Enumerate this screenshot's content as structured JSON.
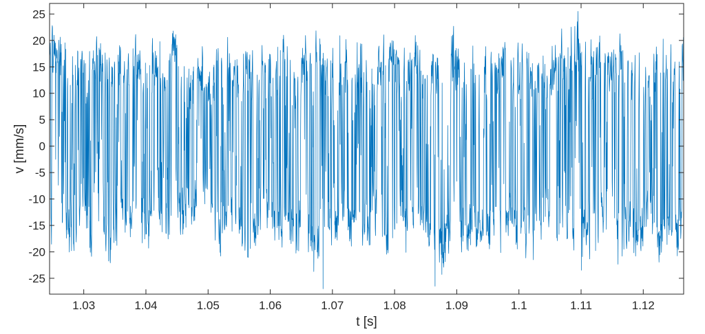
{
  "chart_data": {
    "type": "line",
    "title": "",
    "xlabel": "t [s]",
    "ylabel": "v [mm/s]",
    "xlim": [
      1.0245,
      1.1265
    ],
    "ylim": [
      -28,
      27
    ],
    "x_ticks": [
      1.03,
      1.04,
      1.05,
      1.06,
      1.07,
      1.08,
      1.09,
      1.1,
      1.11,
      1.12
    ],
    "x_tick_labels": [
      "1.03",
      "1.04",
      "1.05",
      "1.06",
      "1.07",
      "1.08",
      "1.09",
      "1.1",
      "1.11",
      "1.12"
    ],
    "y_ticks": [
      25,
      20,
      15,
      10,
      5,
      0,
      -5,
      -10,
      -15,
      -20,
      -25
    ],
    "y_tick_labels": [
      "25",
      "20",
      "15",
      "10",
      "5",
      "0",
      "-5",
      "-10",
      "-15",
      "-20",
      "-25"
    ],
    "grid": false,
    "box": true,
    "colors": {
      "series": "#0072BD",
      "axes": "#262626",
      "background": "#ffffff"
    },
    "series": [
      {
        "x": [
          1.0245,
          1.026,
          1.028,
          1.0295,
          1.031,
          1.0325,
          1.034,
          1.0355,
          1.037,
          1.0385,
          1.04,
          1.0415,
          1.043,
          1.0445,
          1.046,
          1.0475,
          1.049,
          1.0505,
          1.052,
          1.0535,
          1.055,
          1.0565,
          1.058,
          1.0595,
          1.061,
          1.0625,
          1.064,
          1.0655,
          1.067,
          1.0685,
          1.07,
          1.0715,
          1.073,
          1.0745,
          1.076,
          1.0775,
          1.079,
          1.0805,
          1.082,
          1.0835,
          1.085,
          1.0865,
          1.088,
          1.0895,
          1.091,
          1.0925,
          1.094,
          1.0955,
          1.097,
          1.0985,
          1.1,
          1.1015,
          1.103,
          1.1045,
          1.106,
          1.1075,
          1.109,
          1.1105,
          1.112,
          1.1135,
          1.115,
          1.1165,
          1.118,
          1.1195,
          1.121,
          1.1225,
          1.124,
          1.1255,
          1.1265
        ],
        "y": [
          16,
          18,
          -18,
          14,
          -20,
          16,
          -22,
          14,
          -18,
          12,
          -16,
          10,
          -14,
          18,
          -15,
          -12,
          15,
          9,
          -17,
          15,
          -12,
          18,
          -14,
          12,
          -15,
          10,
          -18,
          16,
          -20,
          14,
          -22,
          18,
          -16,
          12,
          -10,
          16,
          -14,
          12,
          -18,
          10,
          -16,
          18,
          -22,
          12,
          -8,
          -10,
          14,
          -12,
          16,
          -14,
          12,
          -16,
          14,
          -12,
          18,
          -15,
          22,
          -18,
          16,
          -12,
          14,
          -16,
          12,
          -14,
          10,
          -18,
          14,
          -16,
          12
        ],
        "band_upper": [
          22,
          23,
          18,
          21,
          20,
          22,
          19,
          20,
          19,
          21,
          17,
          20,
          18,
          22,
          20,
          16,
          21,
          14,
          22,
          19,
          18,
          21,
          17,
          19,
          20,
          22,
          16,
          21,
          22,
          20,
          18,
          21,
          19,
          20,
          17,
          21,
          22,
          20,
          18,
          21,
          17,
          19,
          18,
          22,
          16,
          21,
          19,
          18,
          20,
          22,
          19,
          21,
          17,
          18,
          22,
          20,
          24,
          21,
          20,
          22,
          19,
          21,
          18,
          20,
          17,
          22,
          19,
          21,
          20
        ],
        "band_lower": [
          -20,
          -18,
          -21,
          -16,
          -22,
          -15,
          -24,
          -17,
          -20,
          -16,
          -21,
          -14,
          -20,
          -15,
          -18,
          -17,
          -12,
          -16,
          -22,
          -15,
          -20,
          -23,
          -19,
          -16,
          -21,
          -18,
          -22,
          -17,
          -24,
          -20,
          -22,
          -16,
          -21,
          -18,
          -20,
          -17,
          -22,
          -19,
          -21,
          -16,
          -20,
          -22,
          -24,
          -18,
          -19,
          -20,
          -21,
          -19,
          -23,
          -18,
          -21,
          -20,
          -22,
          -17,
          -21,
          -20,
          -23,
          -22,
          -21,
          -18,
          -20,
          -22,
          -19,
          -21,
          -17,
          -22,
          -20,
          -21,
          -19
        ],
        "annotated_peaks": [
          {
            "x": 1.1095,
            "y": 25.5
          },
          {
            "x": 1.0685,
            "y": -27
          },
          {
            "x": 1.0865,
            "y": -26.5
          }
        ]
      }
    ]
  }
}
